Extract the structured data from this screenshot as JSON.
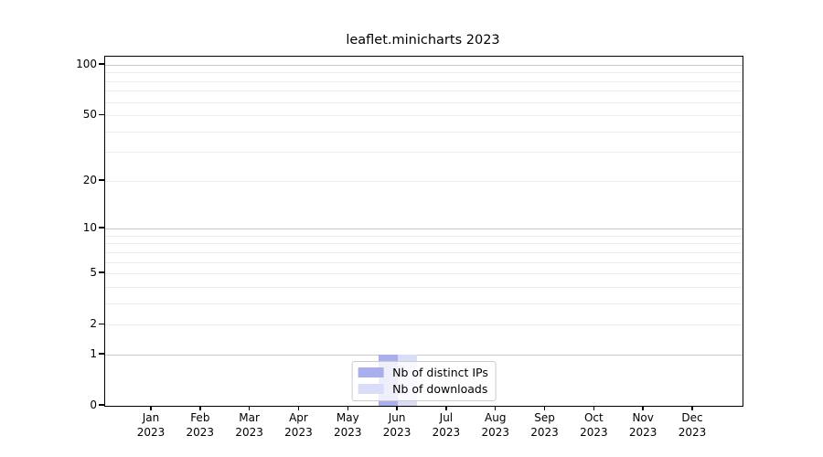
{
  "chart_data": {
    "type": "bar",
    "title": "leaflet.minicharts 2023",
    "categories": [
      "Jan 2023",
      "Feb 2023",
      "Mar 2023",
      "Apr 2023",
      "May 2023",
      "Jun 2023",
      "Jul 2023",
      "Aug 2023",
      "Sep 2023",
      "Oct 2023",
      "Nov 2023",
      "Dec 2023"
    ],
    "series": [
      {
        "name": "Nb of distinct IPs",
        "color": "#a9afec",
        "values": [
          0,
          0,
          0,
          0,
          0,
          1,
          0,
          0,
          0,
          0,
          0,
          0
        ]
      },
      {
        "name": "Nb of downloads",
        "color": "#d9ddf8",
        "values": [
          0,
          0,
          0,
          0,
          0,
          1,
          0,
          0,
          0,
          0,
          0,
          0
        ]
      }
    ],
    "y_axis": {
      "scale": "log1p",
      "ylim": [
        0,
        100
      ],
      "tick_values": [
        0,
        1,
        2,
        5,
        10,
        20,
        50,
        100
      ],
      "tick_labels": [
        "0",
        "1",
        "2",
        "5",
        "10",
        "20",
        "50",
        "100"
      ],
      "major_gridlines": [
        1,
        10,
        100
      ],
      "minor_gridlines": [
        2,
        3,
        4,
        5,
        6,
        7,
        8,
        9,
        20,
        30,
        40,
        50,
        60,
        70,
        80,
        90
      ]
    },
    "legend": {
      "position": "lower center",
      "entries": [
        "Nb of distinct IPs",
        "Nb of downloads"
      ]
    },
    "grid": true
  }
}
